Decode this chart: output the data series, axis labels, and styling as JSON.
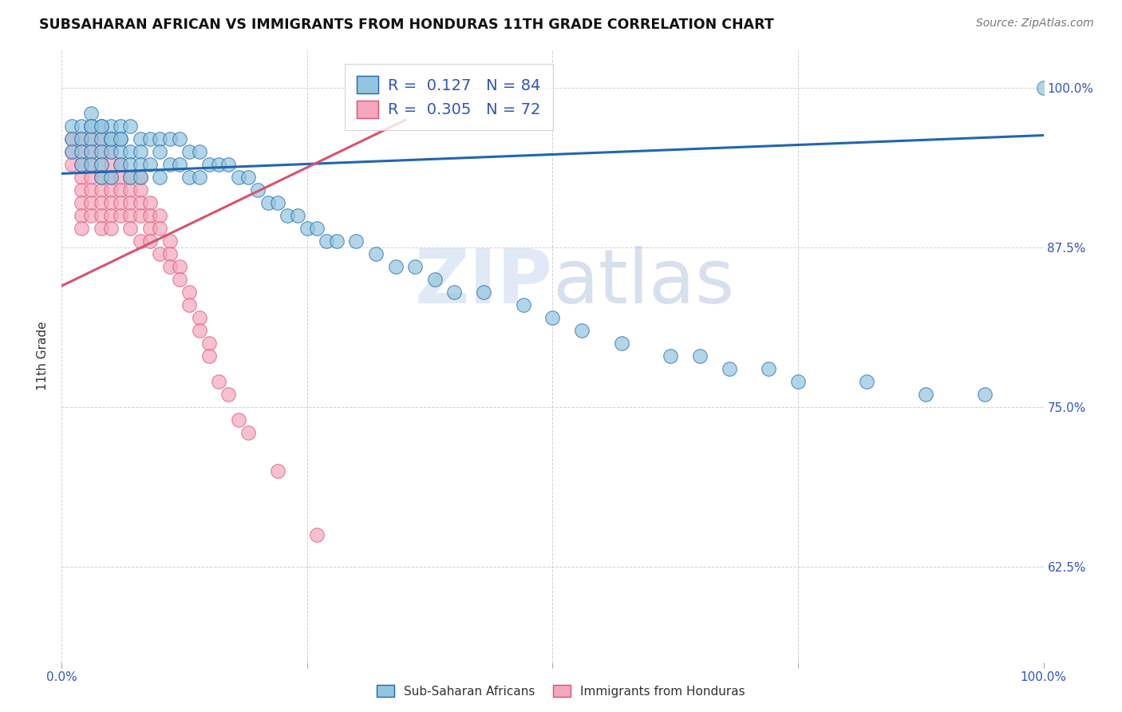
{
  "title": "SUBSAHARAN AFRICAN VS IMMIGRANTS FROM HONDURAS 11TH GRADE CORRELATION CHART",
  "source": "Source: ZipAtlas.com",
  "ylabel": "11th Grade",
  "ytick_labels": [
    "100.0%",
    "87.5%",
    "75.0%",
    "62.5%"
  ],
  "ytick_values": [
    1.0,
    0.875,
    0.75,
    0.625
  ],
  "xlim": [
    0.0,
    1.0
  ],
  "ylim": [
    0.55,
    1.03
  ],
  "color_blue": "#92c5de",
  "color_pink": "#f4a6bc",
  "line_blue": "#2166ac",
  "line_pink": "#d6546e",
  "blue_line_x": [
    0.0,
    1.0
  ],
  "blue_line_y": [
    0.933,
    0.963
  ],
  "pink_line_x": [
    0.0,
    0.35
  ],
  "pink_line_y": [
    0.845,
    0.975
  ],
  "blue_scatter_x": [
    0.01,
    0.01,
    0.01,
    0.02,
    0.02,
    0.02,
    0.02,
    0.03,
    0.03,
    0.03,
    0.03,
    0.03,
    0.04,
    0.04,
    0.04,
    0.04,
    0.04,
    0.05,
    0.05,
    0.05,
    0.05,
    0.06,
    0.06,
    0.06,
    0.06,
    0.07,
    0.07,
    0.07,
    0.07,
    0.08,
    0.08,
    0.08,
    0.08,
    0.09,
    0.09,
    0.1,
    0.1,
    0.1,
    0.11,
    0.11,
    0.12,
    0.12,
    0.13,
    0.13,
    0.14,
    0.14,
    0.15,
    0.16,
    0.17,
    0.18,
    0.19,
    0.2,
    0.21,
    0.22,
    0.23,
    0.24,
    0.25,
    0.26,
    0.27,
    0.28,
    0.3,
    0.32,
    0.34,
    0.36,
    0.38,
    0.4,
    0.43,
    0.47,
    0.5,
    0.53,
    0.57,
    0.62,
    0.65,
    0.68,
    0.72,
    0.75,
    0.82,
    0.88,
    0.94,
    1.0,
    0.03,
    0.04,
    0.05,
    0.06
  ],
  "blue_scatter_y": [
    0.97,
    0.96,
    0.95,
    0.97,
    0.96,
    0.95,
    0.94,
    0.98,
    0.97,
    0.96,
    0.95,
    0.94,
    0.97,
    0.96,
    0.95,
    0.94,
    0.93,
    0.97,
    0.96,
    0.95,
    0.93,
    0.97,
    0.96,
    0.95,
    0.94,
    0.97,
    0.95,
    0.94,
    0.93,
    0.96,
    0.95,
    0.94,
    0.93,
    0.96,
    0.94,
    0.96,
    0.95,
    0.93,
    0.96,
    0.94,
    0.96,
    0.94,
    0.95,
    0.93,
    0.95,
    0.93,
    0.94,
    0.94,
    0.94,
    0.93,
    0.93,
    0.92,
    0.91,
    0.91,
    0.9,
    0.9,
    0.89,
    0.89,
    0.88,
    0.88,
    0.88,
    0.87,
    0.86,
    0.86,
    0.85,
    0.84,
    0.84,
    0.83,
    0.82,
    0.81,
    0.8,
    0.79,
    0.79,
    0.78,
    0.78,
    0.77,
    0.77,
    0.76,
    0.76,
    1.0,
    0.97,
    0.97,
    0.96,
    0.96
  ],
  "pink_scatter_x": [
    0.01,
    0.01,
    0.01,
    0.02,
    0.02,
    0.02,
    0.02,
    0.02,
    0.02,
    0.02,
    0.02,
    0.03,
    0.03,
    0.03,
    0.03,
    0.03,
    0.03,
    0.03,
    0.04,
    0.04,
    0.04,
    0.04,
    0.04,
    0.04,
    0.04,
    0.04,
    0.05,
    0.05,
    0.05,
    0.05,
    0.05,
    0.05,
    0.05,
    0.06,
    0.06,
    0.06,
    0.06,
    0.06,
    0.07,
    0.07,
    0.07,
    0.07,
    0.07,
    0.08,
    0.08,
    0.08,
    0.08,
    0.08,
    0.09,
    0.09,
    0.09,
    0.09,
    0.1,
    0.1,
    0.1,
    0.11,
    0.11,
    0.11,
    0.12,
    0.12,
    0.13,
    0.13,
    0.14,
    0.14,
    0.15,
    0.15,
    0.16,
    0.17,
    0.18,
    0.19,
    0.22,
    0.26
  ],
  "pink_scatter_y": [
    0.96,
    0.95,
    0.94,
    0.96,
    0.95,
    0.94,
    0.93,
    0.92,
    0.91,
    0.9,
    0.89,
    0.96,
    0.95,
    0.94,
    0.93,
    0.92,
    0.91,
    0.9,
    0.96,
    0.95,
    0.94,
    0.93,
    0.92,
    0.91,
    0.9,
    0.89,
    0.95,
    0.94,
    0.93,
    0.92,
    0.91,
    0.9,
    0.89,
    0.94,
    0.93,
    0.92,
    0.91,
    0.9,
    0.93,
    0.92,
    0.91,
    0.9,
    0.89,
    0.93,
    0.92,
    0.91,
    0.9,
    0.88,
    0.91,
    0.9,
    0.89,
    0.88,
    0.9,
    0.89,
    0.87,
    0.88,
    0.87,
    0.86,
    0.86,
    0.85,
    0.84,
    0.83,
    0.82,
    0.81,
    0.8,
    0.79,
    0.77,
    0.76,
    0.74,
    0.73,
    0.7,
    0.65
  ],
  "watermark_zip": "ZIP",
  "watermark_atlas": "atlas"
}
